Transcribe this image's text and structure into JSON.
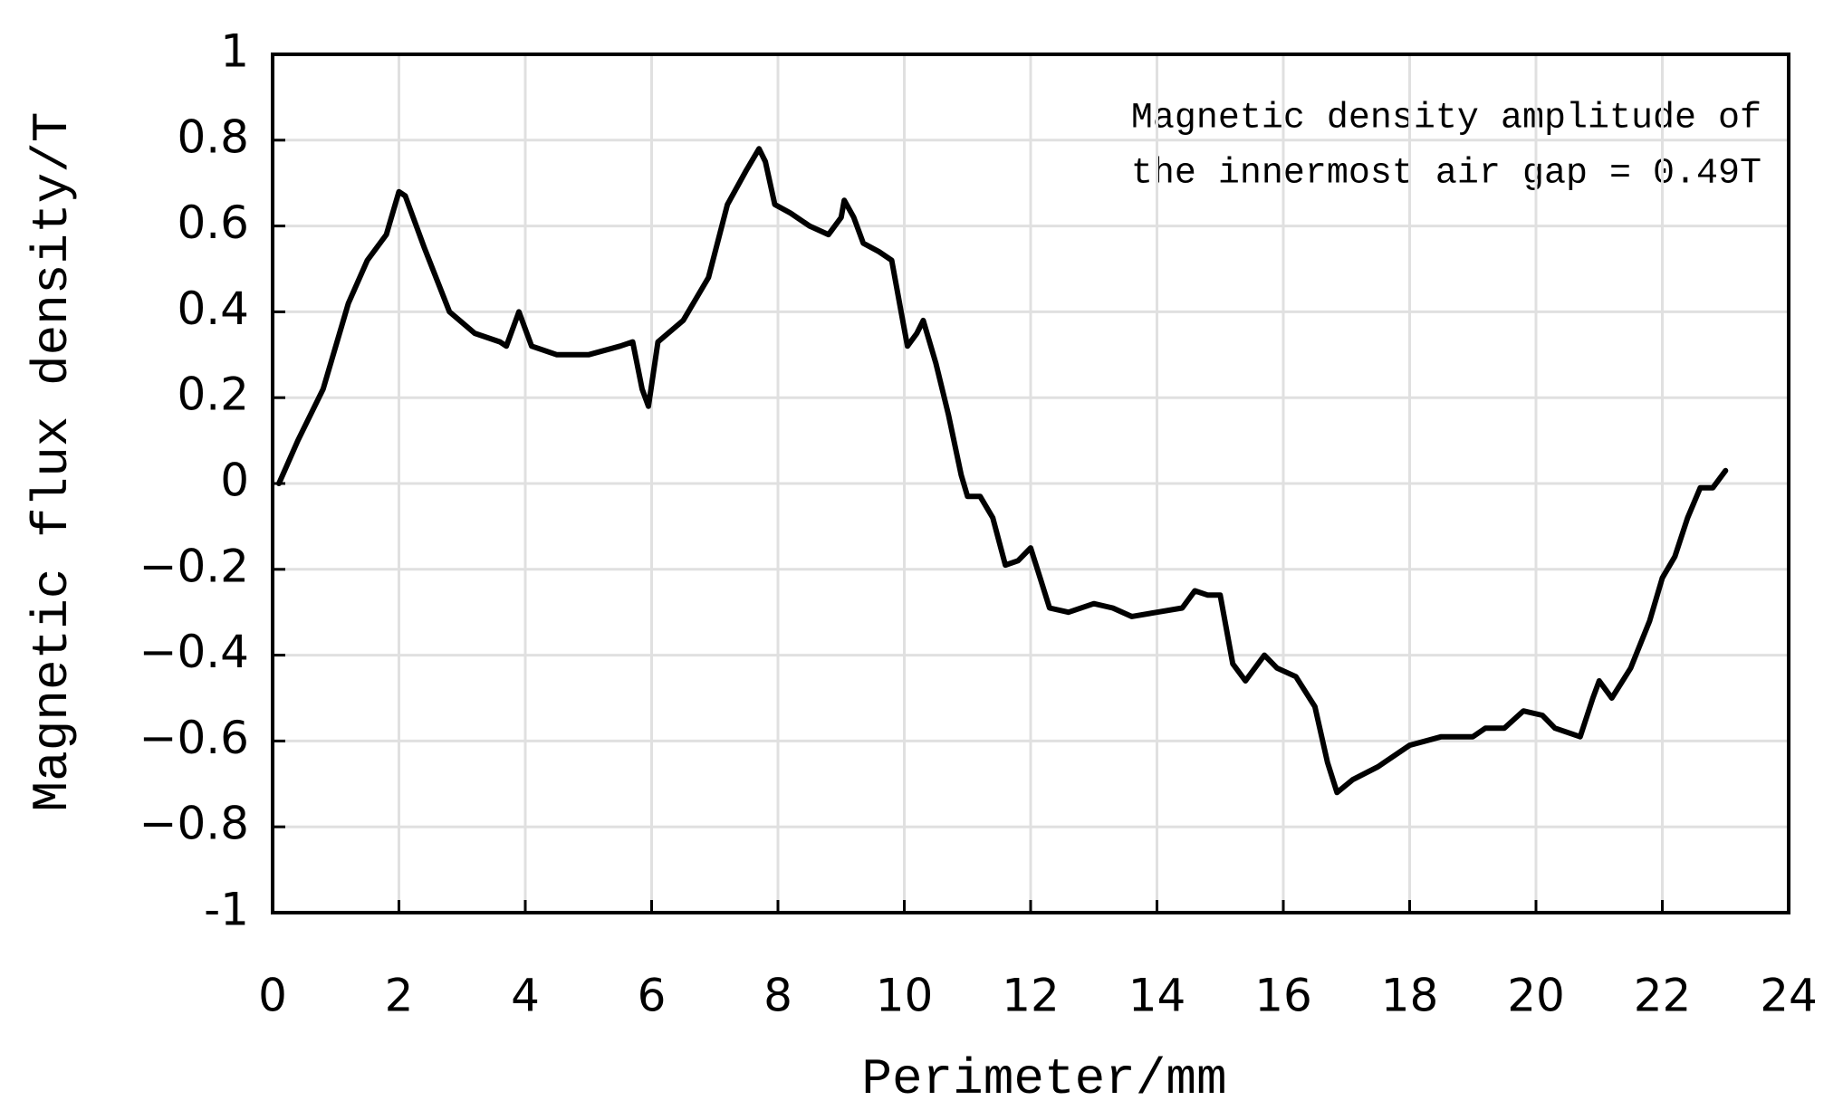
{
  "chart_data": {
    "type": "line",
    "x_label": "Perimeter/mm",
    "y_label": "Magnetic flux density/T",
    "annotation": [
      "Magnetic density amplitude of",
      "the innermost air gap = 0.49T"
    ],
    "color": "#000000",
    "grid": true,
    "xlim": [
      0,
      24
    ],
    "xticks": [
      0,
      2,
      4,
      6,
      8,
      10,
      12,
      14,
      16,
      18,
      20,
      22,
      24
    ],
    "ylim": [
      -1,
      1
    ],
    "yticks": [
      -1,
      {
        "value": -0.8,
        "label": "−0.8"
      },
      {
        "value": -0.6,
        "label": "−0.6"
      },
      {
        "value": -0.4,
        "label": "−0.4"
      },
      {
        "value": -0.2,
        "label": "−0.2"
      },
      0,
      0.2,
      0.4,
      0.6,
      0.8,
      1
    ],
    "x": [
      0.1,
      0.4,
      0.8,
      1.2,
      1.5,
      1.8,
      2.0,
      2.1,
      2.4,
      2.8,
      3.2,
      3.6,
      3.7,
      3.9,
      4.1,
      4.5,
      5.0,
      5.5,
      5.7,
      5.85,
      5.95,
      6.1,
      6.5,
      6.9,
      7.2,
      7.5,
      7.7,
      7.8,
      7.95,
      8.2,
      8.5,
      8.8,
      9.0,
      9.05,
      9.2,
      9.35,
      9.6,
      9.8,
      9.95,
      10.05,
      10.2,
      10.3,
      10.5,
      10.7,
      10.9,
      11.0,
      11.2,
      11.4,
      11.6,
      11.8,
      12.0,
      12.15,
      12.3,
      12.6,
      13.0,
      13.3,
      13.6,
      14.0,
      14.4,
      14.6,
      14.8,
      15.0,
      15.2,
      15.4,
      15.6,
      15.7,
      15.9,
      16.2,
      16.5,
      16.7,
      16.85,
      17.1,
      17.5,
      18.0,
      18.5,
      19.0,
      19.2,
      19.5,
      19.8,
      20.1,
      20.3,
      20.7,
      20.9,
      21.0,
      21.2,
      21.5,
      21.8,
      22.0,
      22.2,
      22.4,
      22.6,
      22.8,
      23.0
    ],
    "values": [
      0,
      0.1,
      0.22,
      0.42,
      0.52,
      0.58,
      0.68,
      0.67,
      0.55,
      0.4,
      0.35,
      0.33,
      0.32,
      0.4,
      0.32,
      0.3,
      0.3,
      0.32,
      0.33,
      0.22,
      0.18,
      0.33,
      0.38,
      0.48,
      0.65,
      0.73,
      0.78,
      0.75,
      0.65,
      0.63,
      0.6,
      0.58,
      0.62,
      0.66,
      0.62,
      0.56,
      0.54,
      0.52,
      0.4,
      0.32,
      0.35,
      0.38,
      0.28,
      0.16,
      0.02,
      -0.03,
      -0.03,
      -0.08,
      -0.19,
      -0.18,
      -0.15,
      -0.22,
      -0.29,
      -0.3,
      -0.28,
      -0.29,
      -0.31,
      -0.3,
      -0.29,
      -0.25,
      -0.26,
      -0.26,
      -0.42,
      -0.46,
      -0.42,
      -0.4,
      -0.43,
      -0.45,
      -0.52,
      -0.65,
      -0.72,
      -0.69,
      -0.66,
      -0.61,
      -0.59,
      -0.59,
      -0.57,
      -0.57,
      -0.53,
      -0.54,
      -0.57,
      -0.59,
      -0.5,
      -0.46,
      -0.5,
      -0.43,
      -0.32,
      -0.22,
      -0.17,
      -0.08,
      -0.01,
      -0.01,
      0.03
    ]
  }
}
